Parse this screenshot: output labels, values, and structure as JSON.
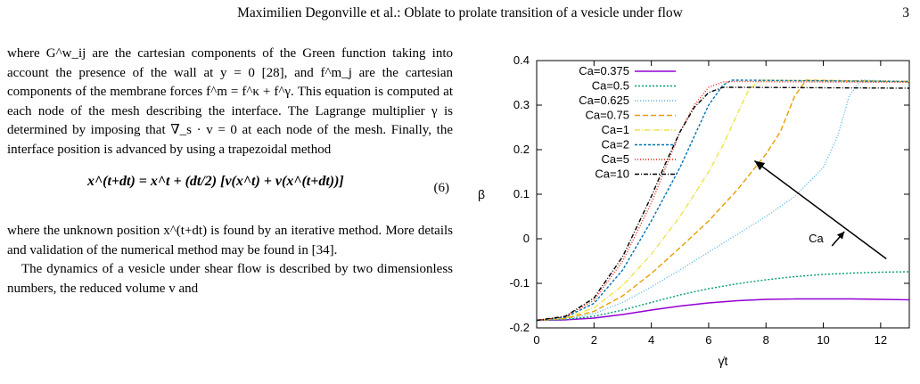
{
  "header": {
    "running_head": "Maximilien Degonville et al.: Oblate to prolate transition of a vesicle under flow",
    "page_number": "3"
  },
  "body_text": {
    "para1": "where G^w_ij are the cartesian components of the Green function taking into account the presence of the wall at y = 0 [28], and f^m_j are the cartesian components of the membrane forces f^m = f^κ + f^γ. This equation is computed at each node of the mesh describing the interface. The Lagrange multiplier γ is determined by imposing that ∇_s · v = 0 at each node of the mesh. Finally, the interface position is advanced by using a trapezoidal method",
    "equation": "x^(t+dt) = x^t + (dt/2) [v(x^t) + v(x^(t+dt))]",
    "equation_number": "(6)",
    "para2": "where the unknown position x^(t+dt) is found by an iterative method. More details and validation of the numerical method may be found in [34].",
    "para3": "The dynamics of a vesicle under shear flow is described by two dimensionless numbers, the reduced volume v and"
  },
  "chart_data": {
    "type": "line",
    "xlabel": "γ̇t",
    "ylabel": "β",
    "xlim": [
      0,
      13
    ],
    "ylim": [
      -0.2,
      0.4
    ],
    "xticks": [
      0,
      2,
      4,
      6,
      8,
      10,
      12
    ],
    "yticks": [
      -0.2,
      -0.1,
      0,
      0.1,
      0.2,
      0.3,
      0.4
    ],
    "ytick_labels": [
      "-0.2",
      "-0.1",
      "0",
      "0.1",
      "0.2",
      "0.3",
      "0.4"
    ],
    "grid": false,
    "legend_position": "top-left",
    "annotation": {
      "text": "Ca",
      "arrow_from": [
        12.2,
        -0.045
      ],
      "arrow_to": [
        7.6,
        0.175
      ]
    },
    "series": [
      {
        "name": "Ca=0.375",
        "color": "#9400d3",
        "dash": "solid",
        "x": [
          0,
          1,
          2,
          3,
          4,
          5,
          6,
          7,
          8,
          9,
          10,
          11,
          12,
          13
        ],
        "y": [
          -0.183,
          -0.182,
          -0.178,
          -0.17,
          -0.16,
          -0.151,
          -0.144,
          -0.139,
          -0.136,
          -0.135,
          -0.135,
          -0.135,
          -0.136,
          -0.137
        ]
      },
      {
        "name": "Ca=0.5",
        "color": "#009e73",
        "dash": "2,2",
        "x": [
          0,
          1,
          2,
          3,
          4,
          5,
          6,
          7,
          8,
          9,
          10,
          11,
          12,
          13
        ],
        "y": [
          -0.183,
          -0.181,
          -0.174,
          -0.16,
          -0.143,
          -0.126,
          -0.112,
          -0.101,
          -0.092,
          -0.085,
          -0.08,
          -0.077,
          -0.075,
          -0.074
        ]
      },
      {
        "name": "Ca=0.625",
        "color": "#56b4e9",
        "dash": "1,2",
        "x": [
          0,
          1,
          2,
          3,
          4,
          5,
          6,
          7,
          8,
          9,
          10,
          10.5,
          10.9,
          11.3,
          13
        ],
        "y": [
          -0.183,
          -0.18,
          -0.168,
          -0.143,
          -0.108,
          -0.07,
          -0.03,
          0.01,
          0.05,
          0.095,
          0.16,
          0.23,
          0.32,
          0.356,
          0.353
        ]
      },
      {
        "name": "Ca=0.75",
        "color": "#e69f00",
        "dash": "6,3",
        "x": [
          0,
          1,
          2,
          3,
          4,
          5,
          6,
          7,
          8,
          8.5,
          9,
          9.4,
          13
        ],
        "y": [
          -0.183,
          -0.179,
          -0.163,
          -0.128,
          -0.078,
          -0.02,
          0.04,
          0.11,
          0.19,
          0.24,
          0.32,
          0.356,
          0.353
        ]
      },
      {
        "name": "Ca=1",
        "color": "#f0e442",
        "dash": "6,2,1,2",
        "x": [
          0,
          1,
          2,
          3,
          4,
          5,
          6,
          6.5,
          7,
          7.4,
          7.8,
          13
        ],
        "y": [
          -0.183,
          -0.178,
          -0.155,
          -0.105,
          -0.035,
          0.05,
          0.15,
          0.21,
          0.28,
          0.335,
          0.356,
          0.353
        ]
      },
      {
        "name": "Ca=2",
        "color": "#0072b2",
        "dash": "3,2",
        "x": [
          0,
          1,
          2,
          3,
          4,
          5,
          5.5,
          6,
          6.5,
          6.8,
          7.2,
          13
        ],
        "y": [
          -0.183,
          -0.176,
          -0.145,
          -0.07,
          0.04,
          0.16,
          0.23,
          0.3,
          0.345,
          0.356,
          0.356,
          0.353
        ]
      },
      {
        "name": "Ca=5",
        "color": "#e51e10",
        "dash": "1,2",
        "x": [
          0,
          1,
          2,
          3,
          4,
          4.5,
          5,
          5.5,
          6,
          6.5,
          7,
          13
        ],
        "y": [
          -0.183,
          -0.175,
          -0.138,
          -0.05,
          0.08,
          0.16,
          0.24,
          0.3,
          0.34,
          0.352,
          0.353,
          0.351
        ]
      },
      {
        "name": "Ca=10",
        "color": "#000000",
        "dash": "5,2,1,2",
        "x": [
          0,
          1,
          2,
          3,
          4,
          4.5,
          5,
          5.5,
          6,
          6.5,
          7,
          13
        ],
        "y": [
          -0.183,
          -0.174,
          -0.133,
          -0.04,
          0.095,
          0.17,
          0.24,
          0.295,
          0.328,
          0.34,
          0.34,
          0.338
        ]
      }
    ]
  }
}
